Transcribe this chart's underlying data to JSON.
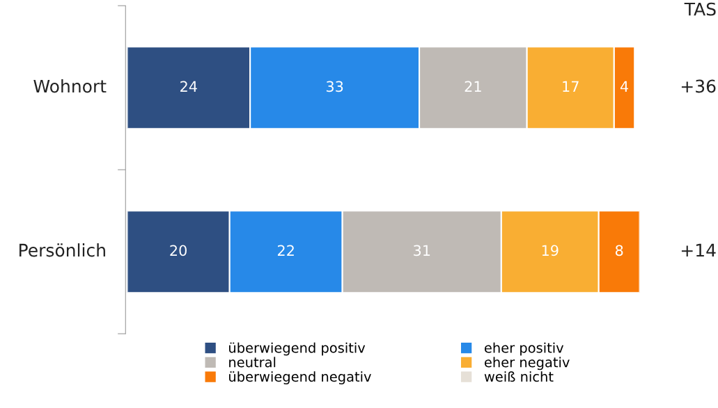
{
  "chart_data": {
    "type": "bar",
    "orientation": "horizontal",
    "stacked": true,
    "categories": [
      "Wohnort",
      "Persönlich"
    ],
    "series": [
      {
        "name": "überwiegend positiv",
        "color": "#2e4f82",
        "values": [
          24,
          20
        ]
      },
      {
        "name": "eher positiv",
        "color": "#2789e8",
        "values": [
          33,
          22
        ]
      },
      {
        "name": "neutral",
        "color": "#bfbab5",
        "values": [
          21,
          31
        ]
      },
      {
        "name": "eher negativ",
        "color": "#f9ae33",
        "values": [
          17,
          19
        ]
      },
      {
        "name": "überwiegend negativ",
        "color": "#f97a08",
        "values": [
          4,
          8
        ]
      },
      {
        "name": "weiß nicht",
        "color": "#e6e0d7",
        "values": [
          null,
          null
        ]
      }
    ],
    "data_labels": true,
    "annotations": [
      "TAS",
      "+36",
      "+14"
    ],
    "legend": "bottom",
    "grid": false
  }
}
